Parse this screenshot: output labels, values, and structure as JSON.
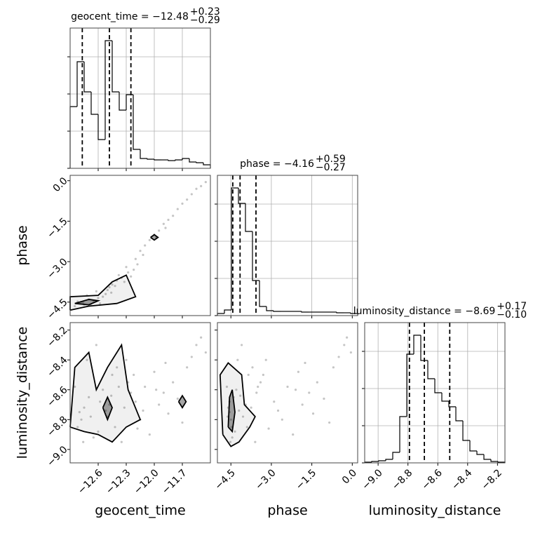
{
  "chart_data": {
    "type": "corner",
    "grid": true,
    "show_hist_ytick_labels": false,
    "axes": [
      {
        "label": "geocent_time",
        "lim": [
          -12.9,
          -11.4
        ],
        "ticks": [
          {
            "value": -12.6,
            "label": "−12.6"
          },
          {
            "value": -12.3,
            "label": "−12.3"
          },
          {
            "value": -12.0,
            "label": "−12.0"
          },
          {
            "value": -11.7,
            "label": "−11.7"
          }
        ]
      },
      {
        "label": "phase",
        "lim": [
          -5.0,
          0.2
        ],
        "ticks": [
          {
            "value": -4.5,
            "label": "−4.5"
          },
          {
            "value": -3.0,
            "label": "−3.0"
          },
          {
            "value": -1.5,
            "label": "−1.5"
          },
          {
            "value": 0.0,
            "label": "0.0"
          }
        ]
      },
      {
        "label": "luminosity_distance",
        "lim": [
          -9.09,
          -8.15
        ],
        "ticks": [
          {
            "value": -9.0,
            "label": "−9.0"
          },
          {
            "value": -8.8,
            "label": "−8.8"
          },
          {
            "value": -8.6,
            "label": "−8.6"
          },
          {
            "value": -8.4,
            "label": "−8.4"
          },
          {
            "value": -8.2,
            "label": "−8.2"
          }
        ]
      }
    ],
    "histograms": [
      {
        "title": "geocent_time = −12.48",
        "title_upper": "+0.23",
        "title_lower": "−0.29",
        "quantiles": [
          -12.77,
          -12.48,
          -12.25
        ],
        "color": "#000000",
        "bins": [
          -12.9,
          -12.825,
          -12.75,
          -12.675,
          -12.6,
          -12.525,
          -12.45,
          -12.375,
          -12.3,
          -12.225,
          -12.15,
          -12.075,
          -12.0,
          -11.925,
          -11.85,
          -11.775,
          -11.7,
          -11.625,
          -11.55,
          -11.475,
          -11.4
        ],
        "counts": [
          88,
          152,
          109,
          77,
          41,
          182,
          109,
          83,
          105,
          27,
          14,
          13,
          12,
          12,
          11,
          12,
          14,
          9,
          8,
          5
        ],
        "ylim": [
          0,
          200
        ],
        "yticks": [
          0,
          53,
          106,
          159
        ]
      },
      {
        "title": "phase = −4.16",
        "title_upper": "+0.59",
        "title_lower": "−0.27",
        "quantiles": [
          -4.43,
          -4.16,
          -3.57
        ],
        "color": "#000000",
        "bins": [
          -5.0,
          -4.74,
          -4.48,
          -4.22,
          -3.96,
          -3.7,
          -3.44,
          -3.18,
          -2.92,
          -2.66,
          -2.4,
          -2.14,
          -1.88,
          -1.62,
          -1.36,
          -1.1,
          -0.84,
          -0.58,
          -0.32,
          -0.06,
          0.2
        ],
        "counts": [
          3,
          8,
          182,
          160,
          120,
          50,
          13,
          7,
          6,
          6,
          6,
          6,
          5,
          5,
          5,
          5,
          5,
          4,
          4,
          3
        ],
        "ylim": [
          0,
          200
        ],
        "yticks": [
          0,
          53,
          106,
          159
        ]
      },
      {
        "title": "luminosity_distance = −8.69",
        "title_upper": "+0.17",
        "title_lower": "−0.10",
        "quantiles": [
          -8.79,
          -8.69,
          -8.52
        ],
        "color": "#000000",
        "bins": [
          -9.09,
          -9.043,
          -8.996,
          -8.949,
          -8.902,
          -8.855,
          -8.808,
          -8.761,
          -8.714,
          -8.667,
          -8.62,
          -8.573,
          -8.526,
          -8.479,
          -8.432,
          -8.385,
          -8.338,
          -8.291,
          -8.244,
          -8.197,
          -8.15
        ],
        "counts": [
          1,
          2,
          3,
          5,
          15,
          66,
          155,
          182,
          146,
          120,
          100,
          88,
          80,
          60,
          32,
          17,
          12,
          5,
          2,
          1
        ],
        "ylim": [
          0,
          200
        ],
        "yticks": [
          0,
          53,
          106,
          159
        ]
      }
    ],
    "samples": [
      [
        -12.8,
        -12.78,
        -12.75,
        -12.7,
        -12.82,
        -12.52,
        -12.5,
        -12.48,
        -12.55,
        -12.45,
        -12.4,
        -12.28,
        -12.25,
        -12.3,
        -12.2,
        -12.15,
        -12.1,
        -12.05,
        -12.0,
        -11.95,
        -11.9,
        -11.85,
        -11.8,
        -11.75,
        -11.7,
        -11.65,
        -11.6,
        -11.55,
        -11.5,
        -11.45,
        -12.6,
        -12.65,
        -12.35,
        -12.85,
        -12.72,
        -12.62,
        -12.42,
        -12.58,
        -12.68,
        -12.32,
        -12.22,
        -11.98,
        -12.12,
        -11.88,
        -12.76,
        -12.46,
        -12.38,
        -12.18
      ],
      [
        -4.55,
        -4.5,
        -4.6,
        -4.4,
        -4.48,
        -4.2,
        -4.05,
        -3.95,
        -4.3,
        -3.85,
        -3.7,
        -3.4,
        -3.55,
        -3.2,
        -2.9,
        -2.6,
        -2.4,
        -2.2,
        -2.0,
        -1.85,
        -1.6,
        -1.45,
        -1.3,
        -1.05,
        -0.85,
        -0.7,
        -0.5,
        -0.3,
        -0.2,
        -0.05,
        -4.35,
        -4.45,
        -3.6,
        -4.65,
        -4.25,
        -4.1,
        -3.9,
        -4.55,
        -4.62,
        -3.75,
        -3.3,
        -2.1,
        -2.75,
        -1.75,
        -4.52,
        -4.15,
        -3.5,
        -3.1
      ],
      [
        -8.75,
        -8.8,
        -8.72,
        -8.65,
        -8.85,
        -8.74,
        -8.78,
        -8.7,
        -8.6,
        -8.5,
        -8.45,
        -8.55,
        -8.62,
        -8.4,
        -8.68,
        -8.8,
        -8.58,
        -8.9,
        -8.48,
        -8.7,
        -8.62,
        -8.76,
        -8.55,
        -8.66,
        -8.82,
        -8.45,
        -8.38,
        -8.3,
        -8.25,
        -8.35,
        -8.88,
        -8.92,
        -8.95,
        -8.58,
        -8.4,
        -8.3,
        -8.85,
        -8.68,
        -8.78,
        -8.72,
        -8.5,
        -8.6,
        -8.74,
        -8.42,
        -8.95,
        -8.64,
        -8.58,
        -8.86
      ]
    ],
    "pair_contours": [
      [
        {
          "x": [
            -12.9,
            -12.9,
            -12.6,
            -12.45,
            -12.3,
            -12.25,
            -12.2,
            -12.4,
            -12.7,
            -12.9
          ],
          "y": [
            -4.8,
            -4.3,
            -4.25,
            -3.75,
            -3.5,
            -3.9,
            -4.3,
            -4.55,
            -4.65,
            -4.8
          ]
        },
        {
          "x": [
            -12.85,
            -12.7,
            -12.6,
            -12.7,
            -12.85
          ],
          "y": [
            -4.55,
            -4.4,
            -4.45,
            -4.6,
            -4.55
          ]
        },
        {
          "x": [
            -12.04,
            -12.0,
            -11.96,
            -12.0,
            -12.04
          ],
          "y": [
            -2.1,
            -2.0,
            -2.1,
            -2.2,
            -2.1
          ]
        }
      ],
      [
        {
          "x": [
            -12.9,
            -12.85,
            -12.7,
            -12.62,
            -12.5,
            -12.35,
            -12.28,
            -12.15,
            -12.3,
            -12.45,
            -12.6,
            -12.75,
            -12.9
          ],
          "y": [
            -8.85,
            -8.45,
            -8.35,
            -8.6,
            -8.45,
            -8.3,
            -8.6,
            -8.8,
            -8.85,
            -8.95,
            -8.9,
            -8.88,
            -8.85
          ]
        },
        {
          "x": [
            -12.55,
            -12.5,
            -12.45,
            -12.5,
            -12.55
          ],
          "y": [
            -8.72,
            -8.65,
            -8.72,
            -8.8,
            -8.72
          ]
        },
        {
          "x": [
            -11.74,
            -11.7,
            -11.66,
            -11.7,
            -11.74
          ],
          "y": [
            -8.68,
            -8.64,
            -8.68,
            -8.72,
            -8.68
          ]
        }
      ],
      [
        {
          "x": [
            -4.8,
            -4.9,
            -4.6,
            -4.1,
            -4.0,
            -3.6,
            -3.8,
            -4.2,
            -4.5,
            -4.8
          ],
          "y": [
            -8.9,
            -8.5,
            -8.42,
            -8.5,
            -8.7,
            -8.78,
            -8.85,
            -8.95,
            -8.98,
            -8.9
          ]
        },
        {
          "x": [
            -4.6,
            -4.55,
            -4.45,
            -4.35,
            -4.45,
            -4.6
          ],
          "y": [
            -8.85,
            -8.65,
            -8.6,
            -8.75,
            -8.88,
            -8.85
          ]
        }
      ]
    ]
  }
}
